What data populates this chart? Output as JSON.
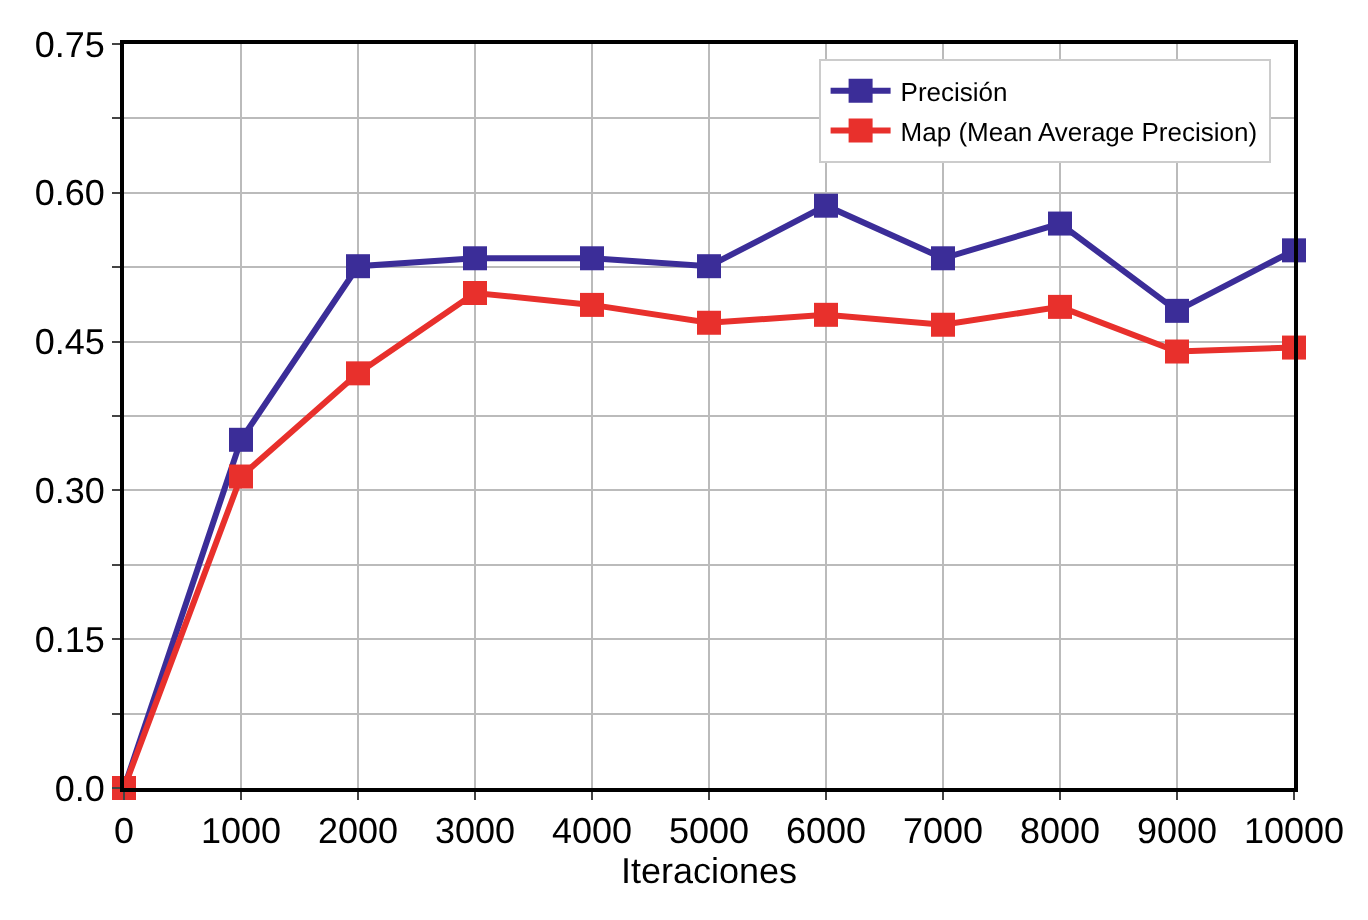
{
  "chart_data": {
    "type": "line",
    "xlabel": "Iteraciones",
    "x": [
      0,
      1000,
      2000,
      3000,
      4000,
      5000,
      6000,
      7000,
      8000,
      9000,
      10000
    ],
    "series": [
      {
        "name": "Precisión",
        "color": "#3b2d98",
        "values": [
          0,
          0.351,
          0.526,
          0.534,
          0.534,
          0.526,
          0.587,
          0.534,
          0.569,
          0.481,
          0.542
        ]
      },
      {
        "name": "Map (Mean Average Precision)",
        "color": "#e8302c",
        "values": [
          0,
          0.314,
          0.418,
          0.499,
          0.487,
          0.469,
          0.477,
          0.467,
          0.485,
          0.44,
          0.444
        ]
      }
    ],
    "xlim": [
      0,
      10000
    ],
    "xticks": [
      0,
      1000,
      2000,
      3000,
      4000,
      5000,
      6000,
      7000,
      8000,
      9000,
      10000
    ],
    "ylim": [
      0,
      0.75
    ],
    "yticks": [
      {
        "value": 0,
        "label": "0.0"
      },
      {
        "value": 0.075,
        "label": null
      },
      {
        "value": 0.15,
        "label": "0.15"
      },
      {
        "value": 0.225,
        "label": null
      },
      {
        "value": 0.3,
        "label": "0.30"
      },
      {
        "value": 0.375,
        "label": null
      },
      {
        "value": 0.45,
        "label": "0.45"
      },
      {
        "value": 0.525,
        "label": null
      },
      {
        "value": 0.6,
        "label": "0.60"
      },
      {
        "value": 0.675,
        "label": null
      },
      {
        "value": 0.75,
        "label": "0.75"
      }
    ],
    "grid": true,
    "legend": "top right",
    "marker": "square",
    "line_style": "solid"
  }
}
